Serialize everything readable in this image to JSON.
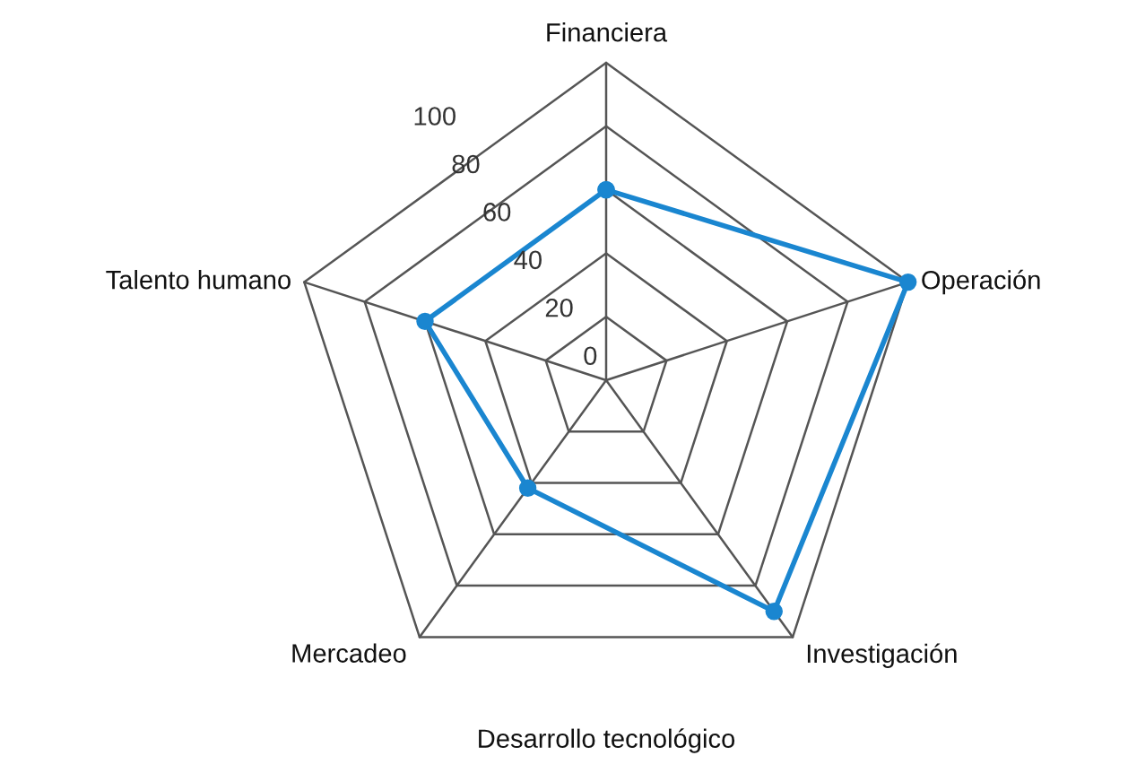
{
  "chart_data": {
    "type": "radar",
    "xlabel": "Desarrollo tecnológico",
    "categories": [
      "Financiera",
      "Operación",
      "Investigación",
      "Mercadeo",
      "Talento humano"
    ],
    "series": [
      {
        "color": "#1a86d0",
        "values": [
          60,
          100,
          90,
          42,
          60
        ]
      }
    ],
    "ylim": [
      0,
      100
    ],
    "yticks": [
      0,
      20,
      40,
      60,
      80,
      100
    ],
    "grid": true,
    "marker": "circle",
    "line_style": "solid"
  }
}
